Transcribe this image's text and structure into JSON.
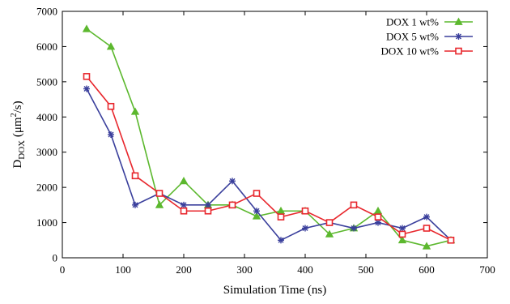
{
  "chart_data": {
    "type": "line",
    "title": "",
    "xlabel": "Simulation Time (ns)",
    "ylabel": {
      "main": "D",
      "sub": "DOX",
      "unit_prefix": " (μm",
      "unit_sup": "2",
      "unit_suffix": "/s)"
    },
    "xlim": [
      0,
      700
    ],
    "ylim": [
      0,
      7000
    ],
    "xticks": [
      0,
      100,
      200,
      300,
      400,
      500,
      600,
      700
    ],
    "yticks": [
      0,
      1000,
      2000,
      3000,
      4000,
      5000,
      6000,
      7000
    ],
    "grid": false,
    "legend_position": "top-right",
    "x": [
      40,
      80,
      120,
      160,
      200,
      240,
      280,
      320,
      360,
      400,
      440,
      480,
      520,
      560,
      600,
      640
    ],
    "series": [
      {
        "name": "DOX 1 wt%",
        "color": "#5cb82e",
        "marker": "triangle",
        "values": [
          6500,
          6000,
          4150,
          1500,
          2180,
          1500,
          1500,
          1180,
          1330,
          1330,
          670,
          840,
          1330,
          500,
          330,
          500
        ]
      },
      {
        "name": "DOX 5 wt%",
        "color": "#3a3f9c",
        "marker": "star",
        "values": [
          4800,
          3500,
          1500,
          1830,
          1500,
          1500,
          2180,
          1330,
          500,
          840,
          1000,
          840,
          1000,
          840,
          1160,
          500
        ]
      },
      {
        "name": "DOX 10 wt%",
        "color": "#e8272d",
        "marker": "square",
        "values": [
          5150,
          4300,
          2330,
          1830,
          1330,
          1330,
          1500,
          1830,
          1160,
          1330,
          1000,
          1500,
          1160,
          670,
          840,
          500
        ]
      }
    ]
  }
}
